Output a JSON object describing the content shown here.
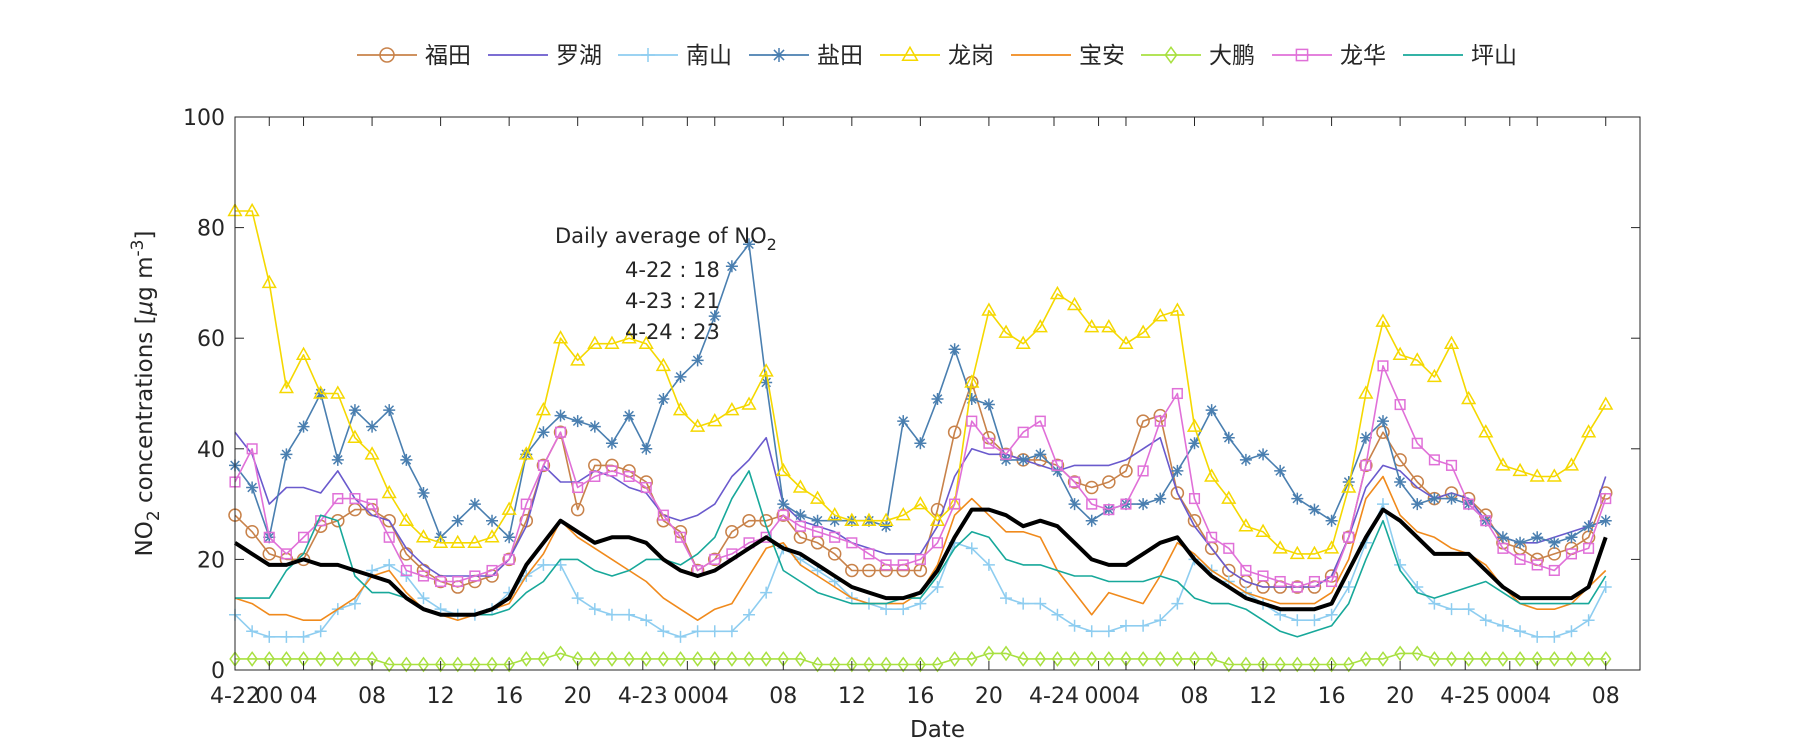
{
  "chart_data": {
    "type": "line",
    "title": "",
    "xlabel": "Date",
    "ylabel": "NO",
    "ylabel_sub": "2",
    "ylabel_rest": " concentrations [",
    "ylabel_mu": "μ",
    "ylabel_unit": "g m",
    "ylabel_sup": "-3",
    "ylabel_close": "]",
    "ylim": [
      0,
      100
    ],
    "yticks": [
      "0",
      "20",
      "40",
      "60",
      "80",
      "100"
    ],
    "x_hours_start": 0,
    "x_hours_end": 82,
    "xticks": [
      {
        "h": 0,
        "label": "4-22"
      },
      {
        "h": 2,
        "label": "00"
      },
      {
        "h": 4,
        "label": "04"
      },
      {
        "h": 8,
        "label": "08"
      },
      {
        "h": 12,
        "label": "12"
      },
      {
        "h": 16,
        "label": "16"
      },
      {
        "h": 20,
        "label": "20"
      },
      {
        "h": 23.8,
        "label": "4-23"
      },
      {
        "h": 26.4,
        "label": "00"
      },
      {
        "h": 28,
        "label": "04"
      },
      {
        "h": 32,
        "label": "08"
      },
      {
        "h": 36,
        "label": "12"
      },
      {
        "h": 40,
        "label": "16"
      },
      {
        "h": 44,
        "label": "20"
      },
      {
        "h": 47.8,
        "label": "4-24"
      },
      {
        "h": 50.4,
        "label": "00"
      },
      {
        "h": 52,
        "label": "04"
      },
      {
        "h": 56,
        "label": "08"
      },
      {
        "h": 60,
        "label": "12"
      },
      {
        "h": 64,
        "label": "16"
      },
      {
        "h": 68,
        "label": "20"
      },
      {
        "h": 71.8,
        "label": "4-25"
      },
      {
        "h": 74.4,
        "label": "00"
      },
      {
        "h": 76,
        "label": "04"
      },
      {
        "h": 80,
        "label": "08"
      }
    ],
    "grid": false,
    "legend_position": "top",
    "annotation": {
      "title": "Daily average of NO",
      "title_sub": "2",
      "lines": [
        "4-22 : 18",
        "4-23 : 21",
        "4-24 : 23"
      ]
    },
    "series": [
      {
        "name": "福田",
        "color": "#c8824a",
        "marker": "circle",
        "values": [
          28,
          25,
          21,
          20,
          20,
          26,
          27,
          29,
          29,
          27,
          21,
          18,
          16,
          15,
          16,
          17,
          20,
          27,
          37,
          43,
          29,
          37,
          37,
          36,
          34,
          27,
          25,
          18,
          20,
          25,
          27,
          27,
          28,
          24,
          23,
          21,
          18,
          18,
          18,
          18,
          18,
          29,
          43,
          52,
          42,
          39,
          38,
          38,
          37,
          34,
          33,
          34,
          36,
          45,
          46,
          32,
          27,
          22,
          18,
          16,
          15,
          15,
          15,
          15,
          17,
          24,
          37,
          43,
          38,
          34,
          31,
          32,
          31,
          28,
          23,
          22,
          20,
          21,
          22,
          24,
          32
        ]
      },
      {
        "name": "罗湖",
        "color": "#6a5acd",
        "marker": "none",
        "values": [
          43,
          39,
          30,
          33,
          33,
          32,
          36,
          31,
          28,
          27,
          22,
          19,
          17,
          17,
          17,
          17,
          20,
          26,
          37,
          34,
          34,
          36,
          35,
          33,
          32,
          28,
          27,
          28,
          30,
          35,
          38,
          42,
          30,
          27,
          26,
          25,
          23,
          22,
          21,
          21,
          21,
          26,
          35,
          40,
          39,
          39,
          38,
          37,
          36,
          37,
          37,
          37,
          38,
          40,
          42,
          32,
          26,
          22,
          18,
          16,
          15,
          15,
          15,
          15,
          17,
          24,
          33,
          37,
          36,
          33,
          31,
          32,
          31,
          27,
          24,
          23,
          23,
          24,
          25,
          26,
          35
        ]
      },
      {
        "name": "南山",
        "color": "#8ecdf0",
        "marker": "plus",
        "values": [
          10,
          7,
          6,
          6,
          6,
          7,
          11,
          12,
          18,
          19,
          17,
          13,
          11,
          10,
          10,
          11,
          14,
          17,
          19,
          19,
          13,
          11,
          10,
          10,
          9,
          7,
          6,
          7,
          7,
          7,
          10,
          14,
          22,
          20,
          18,
          16,
          13,
          12,
          11,
          11,
          12,
          15,
          23,
          22,
          19,
          13,
          12,
          12,
          10,
          8,
          7,
          7,
          8,
          8,
          9,
          12,
          20,
          18,
          16,
          14,
          12,
          10,
          9,
          9,
          10,
          15,
          23,
          30,
          19,
          15,
          12,
          11,
          11,
          9,
          8,
          7,
          6,
          6,
          7,
          9,
          15
        ]
      },
      {
        "name": "盐田",
        "color": "#4a7fb0",
        "marker": "star",
        "values": [
          37,
          33,
          24,
          39,
          44,
          50,
          38,
          47,
          44,
          47,
          38,
          32,
          24,
          27,
          30,
          27,
          24,
          39,
          43,
          46,
          45,
          44,
          41,
          46,
          40,
          49,
          53,
          56,
          64,
          73,
          77,
          52,
          30,
          28,
          27,
          27,
          27,
          27,
          26,
          45,
          41,
          49,
          58,
          49,
          48,
          38,
          38,
          39,
          36,
          30,
          27,
          29,
          30,
          30,
          31,
          36,
          41,
          47,
          42,
          38,
          39,
          36,
          31,
          29,
          27,
          34,
          42,
          45,
          34,
          30,
          31,
          31,
          30,
          27,
          24,
          23,
          24,
          23,
          24,
          26,
          27
        ]
      },
      {
        "name": "龙岗",
        "color": "#f5d800",
        "marker": "triangle",
        "values": [
          83,
          83,
          70,
          51,
          57,
          50,
          50,
          42,
          39,
          32,
          27,
          24,
          23,
          23,
          23,
          24,
          29,
          39,
          47,
          60,
          56,
          59,
          59,
          60,
          59,
          55,
          47,
          44,
          45,
          47,
          48,
          54,
          36,
          33,
          31,
          28,
          27,
          27,
          27,
          28,
          30,
          27,
          30,
          52,
          65,
          61,
          59,
          62,
          68,
          66,
          62,
          62,
          59,
          61,
          64,
          65,
          44,
          35,
          31,
          26,
          25,
          22,
          21,
          21,
          22,
          33,
          50,
          63,
          57,
          56,
          53,
          59,
          49,
          43,
          37,
          36,
          35,
          35,
          37,
          43,
          48
        ]
      },
      {
        "name": "宝安",
        "color": "#f08a1c",
        "marker": "none",
        "values": [
          13,
          12,
          10,
          10,
          9,
          9,
          11,
          13,
          17,
          18,
          14,
          11,
          10,
          9,
          10,
          11,
          12,
          17,
          21,
          27,
          24,
          22,
          20,
          18,
          16,
          13,
          11,
          9,
          11,
          12,
          17,
          22,
          23,
          19,
          17,
          15,
          13,
          12,
          12,
          12,
          14,
          19,
          28,
          31,
          28,
          25,
          25,
          24,
          18,
          14,
          10,
          14,
          13,
          12,
          17,
          23,
          21,
          18,
          16,
          14,
          13,
          12,
          12,
          12,
          14,
          20,
          31,
          35,
          28,
          25,
          24,
          22,
          21,
          19,
          15,
          12,
          11,
          11,
          12,
          15,
          18
        ]
      },
      {
        "name": "大鹏",
        "color": "#a8e040",
        "marker": "diamond",
        "values": [
          2,
          2,
          2,
          2,
          2,
          2,
          2,
          2,
          2,
          1,
          1,
          1,
          1,
          1,
          1,
          1,
          1,
          2,
          2,
          3,
          2,
          2,
          2,
          2,
          2,
          2,
          2,
          2,
          2,
          2,
          2,
          2,
          2,
          2,
          1,
          1,
          1,
          1,
          1,
          1,
          1,
          1,
          2,
          2,
          3,
          3,
          2,
          2,
          2,
          2,
          2,
          2,
          2,
          2,
          2,
          2,
          2,
          2,
          1,
          1,
          1,
          1,
          1,
          1,
          1,
          1,
          2,
          2,
          3,
          3,
          2,
          2,
          2,
          2,
          2,
          2,
          2,
          2,
          2,
          2,
          2
        ]
      },
      {
        "name": "龙华",
        "color": "#e070d8",
        "marker": "square",
        "values": [
          34,
          40,
          24,
          21,
          24,
          27,
          31,
          31,
          30,
          24,
          18,
          17,
          16,
          16,
          17,
          18,
          20,
          30,
          37,
          43,
          33,
          35,
          36,
          35,
          33,
          28,
          24,
          18,
          20,
          21,
          23,
          24,
          28,
          26,
          25,
          24,
          23,
          21,
          19,
          19,
          20,
          23,
          30,
          45,
          41,
          39,
          43,
          45,
          37,
          34,
          30,
          29,
          30,
          36,
          45,
          50,
          31,
          24,
          22,
          18,
          17,
          16,
          15,
          16,
          16,
          24,
          37,
          55,
          48,
          41,
          38,
          37,
          30,
          27,
          22,
          20,
          19,
          18,
          21,
          22,
          31
        ]
      },
      {
        "name": "坪山",
        "color": "#17a89a",
        "marker": "none",
        "values": [
          13,
          13,
          13,
          18,
          21,
          28,
          27,
          17,
          14,
          14,
          13,
          11,
          10,
          10,
          10,
          10,
          11,
          14,
          16,
          20,
          20,
          18,
          17,
          18,
          20,
          20,
          19,
          21,
          24,
          31,
          36,
          26,
          18,
          16,
          14,
          13,
          12,
          12,
          12,
          13,
          13,
          17,
          22,
          25,
          24,
          20,
          19,
          19,
          18,
          17,
          17,
          16,
          16,
          16,
          17,
          16,
          13,
          12,
          12,
          11,
          9,
          7,
          6,
          7,
          8,
          12,
          20,
          27,
          18,
          14,
          13,
          14,
          15,
          16,
          14,
          12,
          12,
          12,
          12,
          12,
          17
        ]
      },
      {
        "name": "",
        "color": "#000000",
        "marker": "none",
        "values": [
          23,
          21,
          19,
          19,
          20,
          19,
          19,
          18,
          17,
          16,
          13,
          11,
          10,
          10,
          10,
          11,
          13,
          19,
          23,
          27,
          25,
          23,
          24,
          24,
          23,
          20,
          18,
          17,
          18,
          20,
          22,
          24,
          22,
          21,
          19,
          17,
          15,
          14,
          13,
          13,
          14,
          18,
          24,
          29,
          29,
          28,
          26,
          27,
          26,
          23,
          20,
          19,
          19,
          21,
          23,
          24,
          20,
          17,
          15,
          13,
          12,
          11,
          11,
          11,
          12,
          18,
          24,
          29,
          27,
          24,
          21,
          21,
          21,
          18,
          15,
          13,
          13,
          13,
          13,
          15,
          24
        ]
      }
    ]
  }
}
